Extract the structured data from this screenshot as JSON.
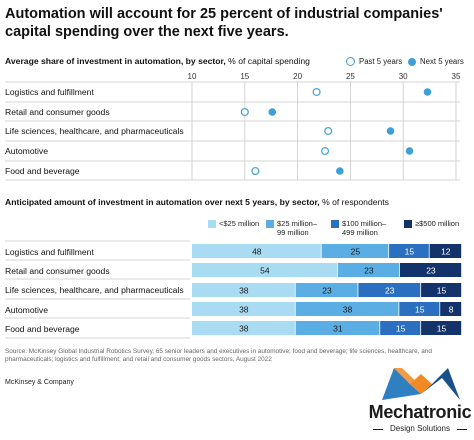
{
  "title": "Automation will account for 25 percent of industrial companies' capital spending over the next five years.",
  "chart_data": [
    {
      "type": "scatter",
      "title_bold": "Average share of investment in automation, by sector,",
      "title_rest": " % of capital spending",
      "legend": [
        {
          "name": "Past 5 years",
          "style": "hollow"
        },
        {
          "name": "Next 5 years",
          "style": "filled"
        }
      ],
      "xlim": [
        10,
        35
      ],
      "xticks": [
        "10",
        "15",
        "20",
        "25",
        "30",
        "35"
      ],
      "categories": [
        "Logistics and fulfillment",
        "Retail and consumer goods",
        "Life sciences, healthcare, and pharmaceuticals",
        "Automotive",
        "Food and beverage"
      ],
      "series": [
        {
          "name": "Past 5 years",
          "values": [
            21.8,
            15.0,
            22.9,
            22.6,
            16.0
          ]
        },
        {
          "name": "Next 5 years",
          "values": [
            32.3,
            17.6,
            28.8,
            30.6,
            24.0
          ]
        }
      ],
      "colors": {
        "past": "#4aa6d8",
        "next": "#3f9fd8",
        "grid": "#c9c9c9"
      }
    },
    {
      "type": "bar",
      "stacked": true,
      "orientation": "horizontal",
      "title_bold": "Anticipated amount of investment in automation over next 5 years, by sector,",
      "title_rest": " % of respondents",
      "categories": [
        "Logistics and fulfillment",
        "Retail and consumer goods",
        "Life sciences, healthcare, and pharmaceuticals",
        "Automotive",
        "Food and beverage"
      ],
      "series": [
        {
          "name": "<$25 million",
          "legend_line1": "<$25 million",
          "legend_line2": "",
          "color": "#a9dcf2",
          "text_color": "#1a1a1a",
          "values": [
            48,
            54,
            38,
            38,
            38
          ]
        },
        {
          "name": "$25 million–99 million",
          "legend_line1": "$25 million–",
          "legend_line2": "99 million",
          "color": "#5aaee3",
          "text_color": "#1a1a1a",
          "values": [
            25,
            23,
            23,
            38,
            31
          ]
        },
        {
          "name": "$100 million–499 million",
          "legend_line1": "$100 million–",
          "legend_line2": "499 million",
          "color": "#2a6fc0",
          "text_color": "#ffffff",
          "values": [
            15,
            0,
            23,
            15,
            15
          ]
        },
        {
          "name": "≥$500 million",
          "legend_line1": "≥$500 million",
          "legend_line2": "",
          "color": "#15336b",
          "text_color": "#ffffff",
          "values": [
            12,
            23,
            15,
            8,
            15
          ]
        }
      ],
      "xlim": [
        0,
        100
      ]
    }
  ],
  "source": "Source: McKinsey Global Industrial Robotics Survey, 65 senior leaders and executives in automotive; food and beverage; life sciences, healthcare, and pharmaceuticals; logistics and fulfillment; and retail and consumer goods sectors, August 2022",
  "company": "McKinsey & Company",
  "logo": {
    "word": "Mechatronic",
    "sub": "Design Solutions",
    "colors": [
      "#2f7fc1",
      "#f08a24",
      "#1b4f8a"
    ]
  }
}
